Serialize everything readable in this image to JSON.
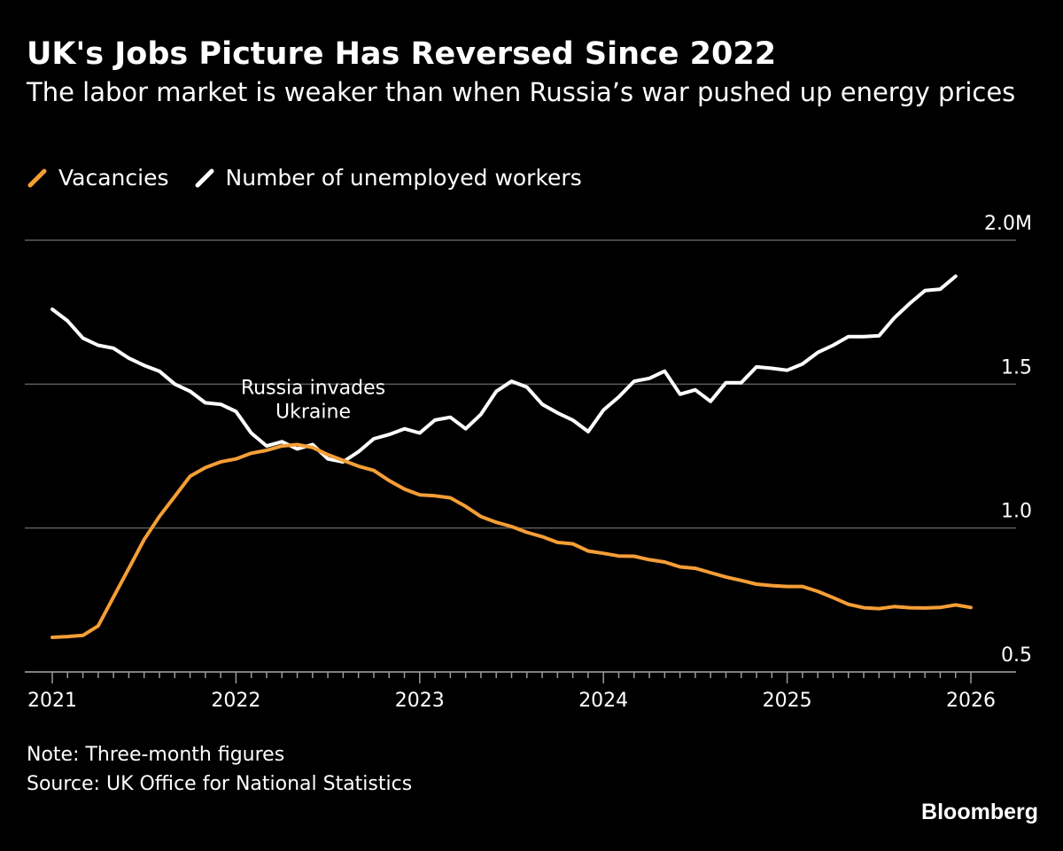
{
  "chart_data": {
    "type": "line",
    "title": "UK's Jobs Picture Has Reversed Since 2022",
    "subtitle": "The labor market is weaker than when Russia’s war pushed up energy prices",
    "xlabel": "",
    "ylabel": "",
    "x_ticks": [
      "2021",
      "2022",
      "2023",
      "2024",
      "2025",
      "2026"
    ],
    "xlim": [
      2021.0,
      2026.2
    ],
    "y_ticks": [
      {
        "value": 0.5,
        "label": "0.5"
      },
      {
        "value": 1.0,
        "label": "1.0"
      },
      {
        "value": 1.5,
        "label": "1.5"
      },
      {
        "value": 2.0,
        "label": "2.0M"
      }
    ],
    "ylim": [
      0.5,
      2.0
    ],
    "grid": true,
    "legend_position": "top-left",
    "annotation": {
      "lines": [
        "Russia invades",
        "Ukraine"
      ],
      "x": 2022.42,
      "y": 1.38
    },
    "series": [
      {
        "name": "Vacancies",
        "color": "#f59e36",
        "x": [
          2021.0,
          2021.083,
          2021.167,
          2021.25,
          2021.333,
          2021.417,
          2021.5,
          2021.583,
          2021.667,
          2021.75,
          2021.833,
          2021.917,
          2022.0,
          2022.083,
          2022.167,
          2022.25,
          2022.333,
          2022.417,
          2022.5,
          2022.583,
          2022.667,
          2022.75,
          2022.833,
          2022.917,
          2023.0,
          2023.083,
          2023.167,
          2023.25,
          2023.333,
          2023.417,
          2023.5,
          2023.583,
          2023.667,
          2023.75,
          2023.833,
          2023.917,
          2024.0,
          2024.083,
          2024.167,
          2024.25,
          2024.333,
          2024.417,
          2024.5,
          2024.583,
          2024.667,
          2024.75,
          2024.833,
          2024.917,
          2025.0,
          2025.083,
          2025.167,
          2025.25,
          2025.333,
          2025.417,
          2025.5,
          2025.583,
          2025.667,
          2025.75,
          2025.833,
          2025.917,
          2026.0
        ],
        "values": [
          0.62,
          0.623,
          0.627,
          0.66,
          0.76,
          0.86,
          0.96,
          1.04,
          1.11,
          1.18,
          1.21,
          1.23,
          1.24,
          1.26,
          1.27,
          1.285,
          1.29,
          1.28,
          1.255,
          1.235,
          1.215,
          1.2,
          1.165,
          1.135,
          1.115,
          1.112,
          1.105,
          1.075,
          1.04,
          1.02,
          1.005,
          0.985,
          0.97,
          0.95,
          0.945,
          0.92,
          0.912,
          0.903,
          0.902,
          0.89,
          0.882,
          0.865,
          0.86,
          0.845,
          0.83,
          0.818,
          0.805,
          0.8,
          0.797,
          0.797,
          0.78,
          0.758,
          0.735,
          0.723,
          0.72,
          0.727,
          0.723,
          0.722,
          0.724,
          0.733,
          0.724
        ]
      },
      {
        "name": "Number of unemployed workers",
        "color": "#ffffff",
        "x": [
          2021.0,
          2021.083,
          2021.167,
          2021.25,
          2021.333,
          2021.417,
          2021.5,
          2021.583,
          2021.667,
          2021.75,
          2021.833,
          2021.917,
          2022.0,
          2022.083,
          2022.167,
          2022.25,
          2022.333,
          2022.417,
          2022.5,
          2022.583,
          2022.667,
          2022.75,
          2022.833,
          2022.917,
          2023.0,
          2023.083,
          2023.167,
          2023.25,
          2023.333,
          2023.417,
          2023.5,
          2023.583,
          2023.667,
          2023.75,
          2023.833,
          2023.917,
          2024.0,
          2024.083,
          2024.167,
          2024.25,
          2024.333,
          2024.417,
          2024.5,
          2024.583,
          2024.667,
          2024.75,
          2024.833,
          2024.917,
          2025.0,
          2025.083,
          2025.167,
          2025.25,
          2025.333,
          2025.417,
          2025.5,
          2025.583,
          2025.667,
          2025.75,
          2025.833,
          2025.917
        ],
        "values": [
          1.76,
          1.72,
          1.66,
          1.635,
          1.625,
          1.59,
          1.565,
          1.545,
          1.5,
          1.475,
          1.435,
          1.43,
          1.405,
          1.33,
          1.285,
          1.3,
          1.275,
          1.29,
          1.24,
          1.23,
          1.265,
          1.31,
          1.325,
          1.345,
          1.33,
          1.375,
          1.385,
          1.345,
          1.395,
          1.475,
          1.51,
          1.49,
          1.43,
          1.4,
          1.375,
          1.335,
          1.41,
          1.455,
          1.51,
          1.52,
          1.545,
          1.465,
          1.48,
          1.44,
          1.505,
          1.505,
          1.56,
          1.555,
          1.548,
          1.57,
          1.61,
          1.635,
          1.665,
          1.665,
          1.668,
          1.73,
          1.78,
          1.825,
          1.83,
          1.875
        ]
      }
    ]
  },
  "note": "Note: Three-month figures",
  "source": "Source: UK Office for National Statistics",
  "logo": "Bloomberg"
}
